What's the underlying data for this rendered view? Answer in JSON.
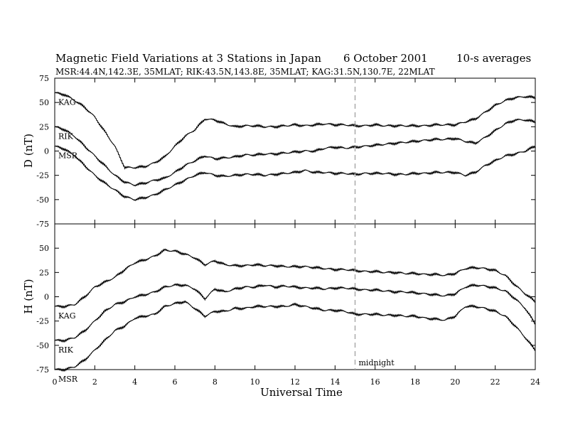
{
  "header": {
    "title": "Magnetic Field Variations at 3 Stations in Japan",
    "date": "6   October 2001",
    "averaging": "10-s averages",
    "subtitle": "MSR:44.4N,142.3E, 35MLAT;  RIK:43.5N,143.8E, 35MLAT;  KAG:31.5N,130.7E, 22MLAT"
  },
  "colors": {
    "trace": "#000000",
    "midnight_line": "#aaaaaa"
  },
  "chart_data": [
    {
      "type": "line",
      "panel": "D",
      "ylabel": "D (nT)",
      "ylim": [
        -75,
        75
      ],
      "yticks": [
        -75,
        -50,
        -25,
        0,
        25,
        50,
        75
      ],
      "xlim": [
        0,
        24
      ],
      "xticks": [
        0,
        2,
        4,
        6,
        8,
        10,
        12,
        14,
        16,
        18,
        20,
        22,
        24
      ],
      "series": [
        {
          "name": "KAG",
          "x": [
            0,
            0.5,
            1,
            1.5,
            2,
            2.5,
            3,
            3.5,
            4,
            4.5,
            5,
            5.5,
            6,
            6.5,
            7,
            7.5,
            8,
            8.5,
            9,
            9.5,
            10,
            10.5,
            11,
            11.5,
            12,
            12.5,
            13,
            13.5,
            14,
            14.5,
            15,
            15.5,
            16,
            16.5,
            17,
            17.5,
            18,
            18.5,
            19,
            19.5,
            20,
            20.5,
            21,
            21.5,
            22,
            22.5,
            23,
            23.5,
            24
          ],
          "y": [
            60,
            58,
            52,
            45,
            35,
            20,
            5,
            -17,
            -17,
            -16,
            -12,
            -6,
            5,
            15,
            22,
            33,
            32,
            28,
            25,
            26,
            26,
            25,
            25,
            26,
            27,
            26,
            27,
            28,
            27,
            27,
            26,
            26,
            27,
            26,
            26,
            26,
            26,
            26,
            27,
            27,
            27,
            30,
            33,
            40,
            47,
            52,
            55,
            56,
            55
          ]
        },
        {
          "name": "RIK",
          "x": [
            0,
            0.5,
            1,
            1.5,
            2,
            2.5,
            3,
            3.5,
            4,
            4.5,
            5,
            5.5,
            6,
            6.5,
            7,
            7.5,
            8,
            8.5,
            9,
            9.5,
            10,
            10.5,
            11,
            11.5,
            12,
            12.5,
            13,
            13.5,
            14,
            14.5,
            15,
            15.5,
            16,
            16.5,
            17,
            17.5,
            18,
            18.5,
            19,
            19.5,
            20,
            20.5,
            21,
            21.5,
            22,
            22.5,
            23,
            23.5,
            24
          ],
          "y": [
            25,
            22,
            15,
            5,
            -5,
            -15,
            -25,
            -32,
            -35,
            -33,
            -30,
            -28,
            -22,
            -15,
            -10,
            -5,
            -8,
            -7,
            -6,
            -4,
            -4,
            -3,
            -3,
            -2,
            -1,
            0,
            0,
            3,
            4,
            3,
            4,
            5,
            6,
            7,
            8,
            9,
            10,
            11,
            12,
            12,
            13,
            10,
            8,
            14,
            21,
            28,
            32,
            32,
            30
          ]
        },
        {
          "name": "MSR",
          "x": [
            0,
            0.5,
            1,
            1.5,
            2,
            2.5,
            3,
            3.5,
            4,
            4.5,
            5,
            5.5,
            6,
            6.5,
            7,
            7.5,
            8,
            8.5,
            9,
            9.5,
            10,
            10.5,
            11,
            11.5,
            12,
            12.5,
            13,
            13.5,
            14,
            14.5,
            15,
            15.5,
            16,
            16.5,
            17,
            17.5,
            18,
            18.5,
            19,
            19.5,
            20,
            20.5,
            21,
            21.5,
            22,
            22.5,
            23,
            23.5,
            24
          ],
          "y": [
            5,
            2,
            -5,
            -15,
            -25,
            -33,
            -40,
            -47,
            -50,
            -48,
            -45,
            -40,
            -35,
            -30,
            -25,
            -22,
            -25,
            -26,
            -25,
            -24,
            -24,
            -25,
            -24,
            -23,
            -22,
            -20,
            -22,
            -22,
            -23,
            -23,
            -24,
            -23,
            -23,
            -23,
            -24,
            -24,
            -23,
            -23,
            -22,
            -22,
            -22,
            -25,
            -22,
            -15,
            -10,
            -5,
            -3,
            0,
            5
          ]
        }
      ]
    },
    {
      "type": "line",
      "panel": "H",
      "ylabel": "H (nT)",
      "ylim": [
        -75,
        75
      ],
      "yticks": [
        -75,
        -50,
        -25,
        0,
        25,
        50
      ],
      "xlim": [
        0,
        24
      ],
      "xticks": [
        0,
        2,
        4,
        6,
        8,
        10,
        12,
        14,
        16,
        18,
        20,
        22,
        24
      ],
      "xlabel": "Universal Time",
      "annotation": {
        "text": "midnight",
        "x": 15
      },
      "series": [
        {
          "name": "KAG",
          "x": [
            0,
            0.5,
            1,
            1.5,
            2,
            2.5,
            3,
            3.5,
            4,
            4.5,
            5,
            5.5,
            6,
            6.5,
            7,
            7.5,
            8,
            8.5,
            9,
            9.5,
            10,
            10.5,
            11,
            11.5,
            12,
            12.5,
            13,
            13.5,
            14,
            14.5,
            15,
            15.5,
            16,
            16.5,
            17,
            17.5,
            18,
            18.5,
            19,
            19.5,
            20,
            20.5,
            21,
            21.5,
            22,
            22.5,
            23,
            23.5,
            24
          ],
          "y": [
            -10,
            -10,
            -8,
            0,
            10,
            15,
            20,
            28,
            35,
            38,
            42,
            48,
            47,
            44,
            40,
            33,
            37,
            33,
            32,
            32,
            33,
            32,
            32,
            31,
            31,
            31,
            30,
            29,
            28,
            28,
            27,
            26,
            26,
            25,
            25,
            24,
            24,
            23,
            23,
            22,
            24,
            29,
            30,
            29,
            27,
            22,
            12,
            3,
            -5
          ]
        },
        {
          "name": "RIK",
          "x": [
            0,
            0.5,
            1,
            1.5,
            2,
            2.5,
            3,
            3.5,
            4,
            4.5,
            5,
            5.5,
            6,
            6.5,
            7,
            7.5,
            8,
            8.5,
            9,
            9.5,
            10,
            10.5,
            11,
            11.5,
            12,
            12.5,
            13,
            13.5,
            14,
            14.5,
            15,
            15.5,
            16,
            16.5,
            17,
            17.5,
            18,
            18.5,
            19,
            19.5,
            20,
            20.5,
            21,
            21.5,
            22,
            22.5,
            23,
            23.5,
            24
          ],
          "y": [
            -45,
            -45,
            -42,
            -35,
            -25,
            -15,
            -8,
            -5,
            0,
            2,
            5,
            10,
            12,
            12,
            8,
            -2,
            8,
            5,
            8,
            10,
            10,
            12,
            10,
            11,
            10,
            9,
            9,
            8,
            9,
            9,
            8,
            7,
            7,
            6,
            5,
            5,
            4,
            3,
            2,
            1,
            3,
            10,
            12,
            11,
            9,
            6,
            -2,
            -12,
            -28
          ]
        },
        {
          "name": "MSR",
          "x": [
            0,
            0.5,
            1,
            1.5,
            2,
            2.5,
            3,
            3.5,
            4,
            4.5,
            5,
            5.5,
            6,
            6.5,
            7,
            7.5,
            8,
            8.5,
            9,
            9.5,
            10,
            10.5,
            11,
            11.5,
            12,
            12.5,
            13,
            13.5,
            14,
            14.5,
            15,
            15.5,
            16,
            16.5,
            17,
            17.5,
            18,
            18.5,
            19,
            19.5,
            20,
            20.5,
            21,
            21.5,
            22,
            22.5,
            23,
            23.5,
            24
          ],
          "y": [
            -75,
            -75,
            -72,
            -65,
            -55,
            -45,
            -35,
            -30,
            -22,
            -20,
            -18,
            -10,
            -7,
            -5,
            -12,
            -20,
            -15,
            -15,
            -12,
            -12,
            -10,
            -10,
            -10,
            -10,
            -8,
            -10,
            -12,
            -14,
            -14,
            -15,
            -18,
            -18,
            -18,
            -19,
            -19,
            -20,
            -20,
            -22,
            -23,
            -24,
            -20,
            -10,
            -10,
            -12,
            -15,
            -20,
            -30,
            -42,
            -55
          ]
        }
      ]
    }
  ]
}
